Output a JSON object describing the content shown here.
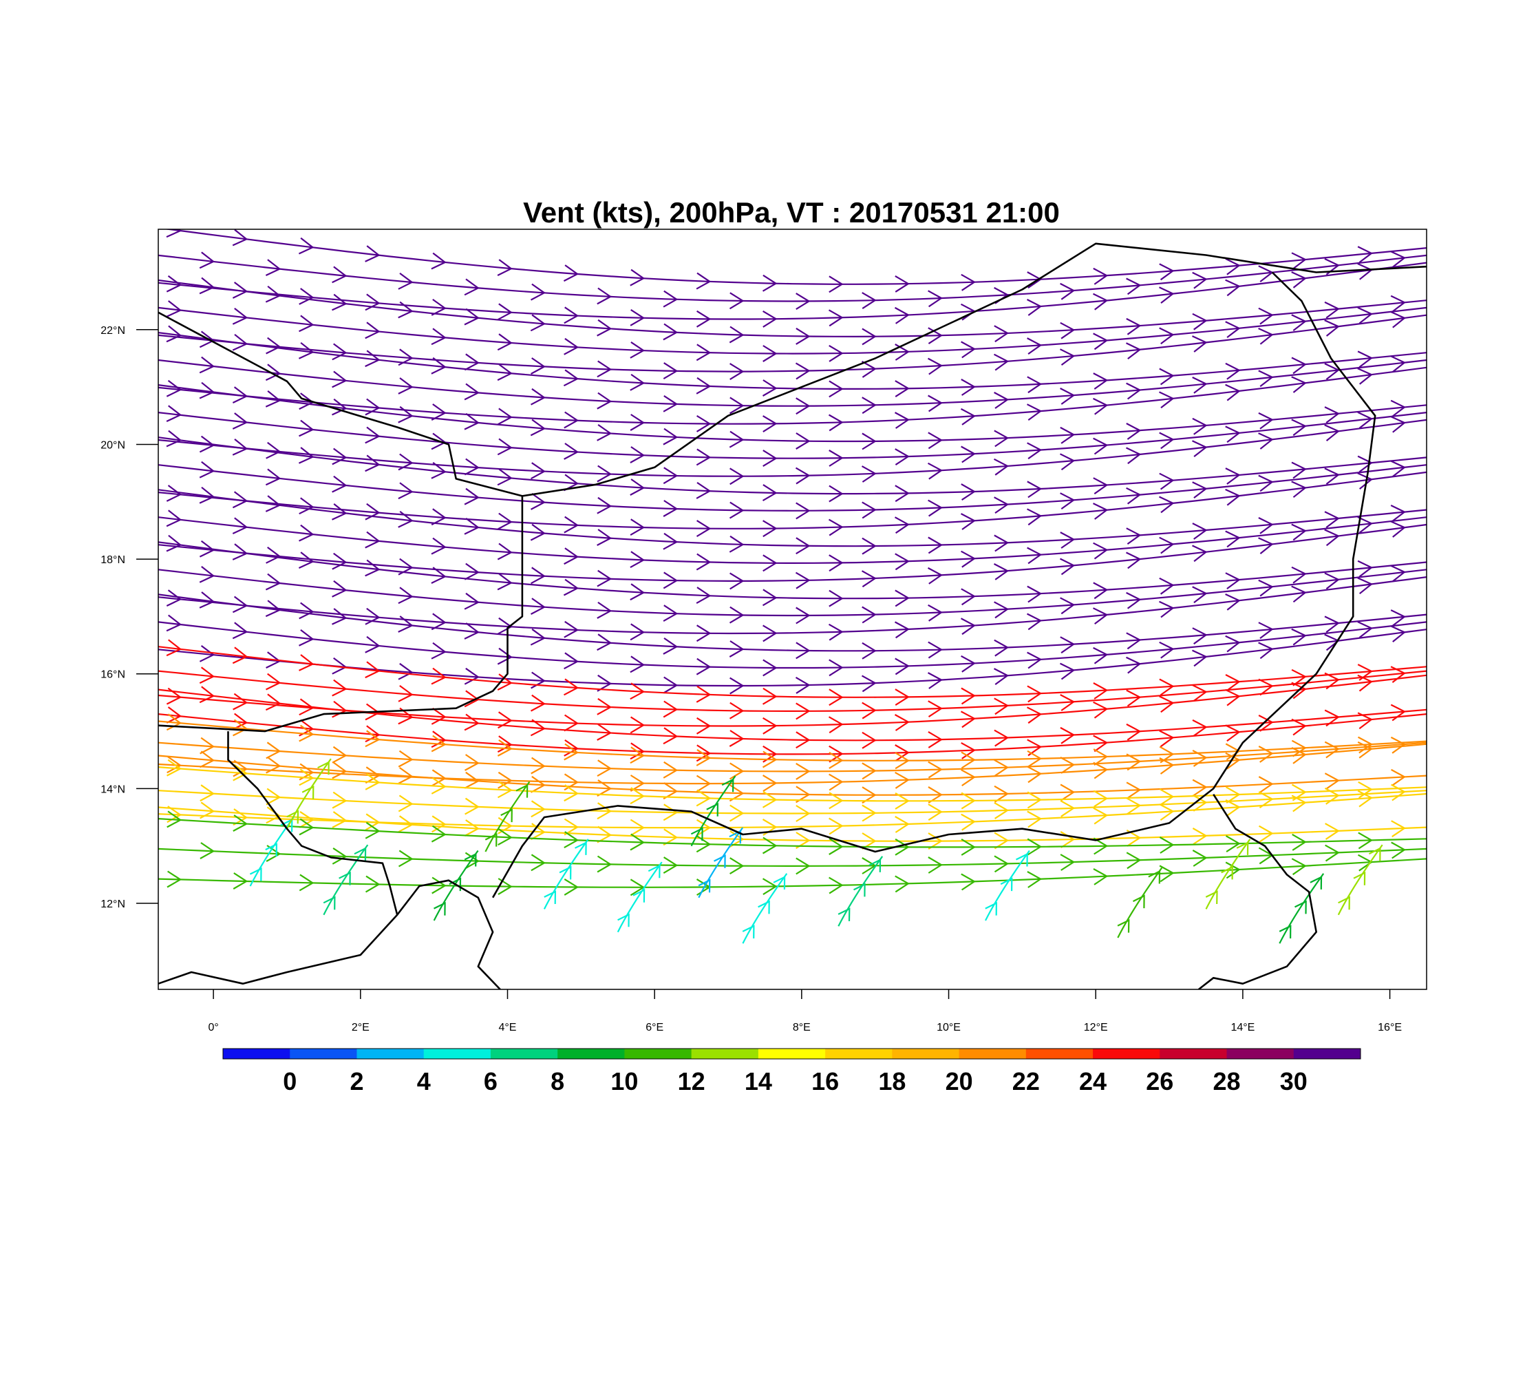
{
  "title": "Vent (kts), 200hPa, VT : 20170531  21:00",
  "map": {
    "lon_range": [
      -0.75,
      16.5
    ],
    "lat_range": [
      10.5,
      23.75
    ],
    "lon_ticks": [
      {
        "value": 0,
        "label": "0°"
      },
      {
        "value": 2,
        "label": "2°E"
      },
      {
        "value": 4,
        "label": "4°E"
      },
      {
        "value": 6,
        "label": "6°E"
      },
      {
        "value": 8,
        "label": "8°E"
      },
      {
        "value": 10,
        "label": "10°E"
      },
      {
        "value": 12,
        "label": "12°E"
      },
      {
        "value": 14,
        "label": "14°E"
      },
      {
        "value": 16,
        "label": "16°E"
      }
    ],
    "lat_ticks": [
      {
        "value": 12,
        "label": "12°N"
      },
      {
        "value": 14,
        "label": "14°N"
      },
      {
        "value": 16,
        "label": "16°N"
      },
      {
        "value": 18,
        "label": "18°N"
      },
      {
        "value": 20,
        "label": "20°N"
      },
      {
        "value": 22,
        "label": "22°N"
      }
    ],
    "streamline_bands": [
      {
        "lat_from": 23.6,
        "lat_to": 16.6,
        "count": 24,
        "speed": 31,
        "dip": 0.8
      },
      {
        "lat_from": 16.3,
        "lat_to": 15.3,
        "count": 5,
        "speed": 25,
        "dip": 0.7
      },
      {
        "lat_from": 15.0,
        "lat_to": 14.4,
        "count": 4,
        "speed": 21,
        "dip": 0.5
      },
      {
        "lat_from": 14.2,
        "lat_to": 13.5,
        "count": 4,
        "speed": 16,
        "dip": 0.4
      },
      {
        "lat_from": 13.3,
        "lat_to": 12.6,
        "count": 3,
        "speed": 11,
        "dip": 0.3
      }
    ],
    "southern_flow": [
      {
        "lon": 0.5,
        "lat": 12.3,
        "speed": 5
      },
      {
        "lon": 1.5,
        "lat": 11.8,
        "speed": 7
      },
      {
        "lon": 3.0,
        "lat": 11.7,
        "speed": 9
      },
      {
        "lon": 4.5,
        "lat": 11.9,
        "speed": 5
      },
      {
        "lon": 5.5,
        "lat": 11.5,
        "speed": 4
      },
      {
        "lon": 6.6,
        "lat": 12.1,
        "speed": 3
      },
      {
        "lon": 7.2,
        "lat": 11.3,
        "speed": 4
      },
      {
        "lon": 8.5,
        "lat": 11.6,
        "speed": 6
      },
      {
        "lon": 10.5,
        "lat": 11.7,
        "speed": 4
      },
      {
        "lon": 12.3,
        "lat": 11.4,
        "speed": 10
      },
      {
        "lon": 13.5,
        "lat": 11.9,
        "speed": 12
      },
      {
        "lon": 14.5,
        "lat": 11.3,
        "speed": 8
      },
      {
        "lon": 15.3,
        "lat": 11.8,
        "speed": 12
      },
      {
        "lon": 1.0,
        "lat": 13.3,
        "speed": 12
      },
      {
        "lon": 3.7,
        "lat": 12.9,
        "speed": 10
      },
      {
        "lon": 6.5,
        "lat": 13.0,
        "speed": 9
      }
    ],
    "boundaries": [
      [
        [
          -0.75,
          22.3
        ],
        [
          1.0,
          21.1
        ],
        [
          1.2,
          20.8
        ],
        [
          2.5,
          20.3
        ],
        [
          3.2,
          20.0
        ],
        [
          3.3,
          19.4
        ],
        [
          4.2,
          19.1
        ],
        [
          5.2,
          19.3
        ],
        [
          6.0,
          19.6
        ],
        [
          7.0,
          20.5
        ],
        [
          8.0,
          21.0
        ],
        [
          9.0,
          21.5
        ],
        [
          10.0,
          22.1
        ],
        [
          11.0,
          22.7
        ],
        [
          12.0,
          23.5
        ],
        [
          13.5,
          23.3
        ],
        [
          15.0,
          23.0
        ],
        [
          16.5,
          23.1
        ]
      ],
      [
        [
          4.2,
          19.1
        ],
        [
          4.2,
          17.0
        ],
        [
          4.0,
          16.8
        ],
        [
          4.0,
          16.0
        ],
        [
          3.8,
          15.7
        ],
        [
          3.3,
          15.4
        ],
        [
          1.5,
          15.3
        ],
        [
          0.7,
          15.0
        ],
        [
          0.0,
          15.05
        ],
        [
          -0.75,
          15.1
        ]
      ],
      [
        [
          0.2,
          15.0
        ],
        [
          0.2,
          14.5
        ],
        [
          0.6,
          14.0
        ],
        [
          1.0,
          13.3
        ],
        [
          1.2,
          13.0
        ],
        [
          1.6,
          12.8
        ],
        [
          2.3,
          12.7
        ],
        [
          2.4,
          12.3
        ],
        [
          2.5,
          11.8
        ],
        [
          2.0,
          11.1
        ],
        [
          1.0,
          10.8
        ],
        [
          0.4,
          10.6
        ],
        [
          -0.3,
          10.8
        ],
        [
          -0.75,
          10.6
        ]
      ],
      [
        [
          2.5,
          11.8
        ],
        [
          2.8,
          12.3
        ],
        [
          3.2,
          12.4
        ],
        [
          3.6,
          12.1
        ],
        [
          3.8,
          11.5
        ],
        [
          3.6,
          10.9
        ],
        [
          3.9,
          10.5
        ]
      ],
      [
        [
          3.8,
          12.1
        ],
        [
          4.2,
          13.0
        ],
        [
          4.5,
          13.5
        ],
        [
          5.5,
          13.7
        ],
        [
          6.5,
          13.6
        ],
        [
          7.2,
          13.2
        ],
        [
          8.0,
          13.3
        ],
        [
          9.0,
          12.9
        ],
        [
          10.0,
          13.2
        ],
        [
          11.0,
          13.3
        ],
        [
          12.0,
          13.1
        ],
        [
          13.0,
          13.4
        ],
        [
          13.6,
          14.0
        ],
        [
          14.0,
          14.8
        ],
        [
          15.0,
          16.0
        ],
        [
          15.5,
          17.0
        ],
        [
          15.5,
          18.0
        ],
        [
          15.7,
          19.5
        ],
        [
          15.8,
          20.5
        ],
        [
          15.2,
          21.5
        ],
        [
          14.8,
          22.5
        ],
        [
          14.4,
          23.0
        ]
      ],
      [
        [
          13.6,
          13.9
        ],
        [
          13.9,
          13.3
        ],
        [
          14.3,
          13.0
        ],
        [
          14.6,
          12.5
        ],
        [
          14.9,
          12.2
        ],
        [
          15.0,
          11.5
        ],
        [
          14.6,
          10.9
        ],
        [
          14.0,
          10.6
        ],
        [
          13.6,
          10.7
        ],
        [
          13.4,
          10.5
        ]
      ]
    ]
  },
  "colorbar": {
    "colors": [
      "#0d0ff0",
      "#0a55f5",
      "#00b4f5",
      "#00f0dc",
      "#00d27e",
      "#00b02a",
      "#37b800",
      "#9be000",
      "#ffff00",
      "#ffd200",
      "#ffb400",
      "#ff8c00",
      "#ff5000",
      "#fa0a0a",
      "#c8002d",
      "#8b005f",
      "#53008e"
    ],
    "labels": [
      "0",
      "2",
      "4",
      "6",
      "8",
      "10",
      "12",
      "14",
      "16",
      "18",
      "20",
      "22",
      "24",
      "26",
      "28",
      "30"
    ]
  }
}
